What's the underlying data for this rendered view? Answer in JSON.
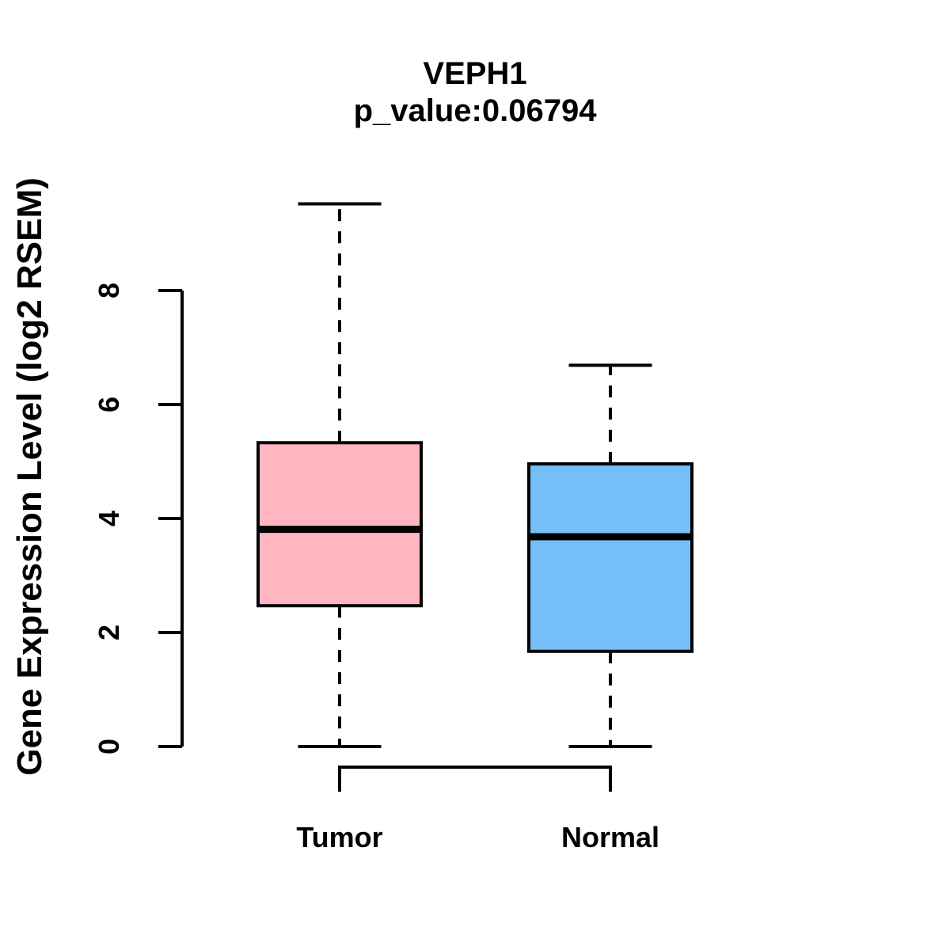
{
  "chart_data": {
    "type": "boxplot",
    "title": "VEPH1",
    "subtitle": "p_value:0.06794",
    "p_value": 0.06794,
    "ylabel": "Gene Expression Level (log2 RSEM)",
    "xlabel": "",
    "ylim": [
      0,
      9.6
    ],
    "yticks": [
      0,
      2,
      4,
      6,
      8
    ],
    "grid": false,
    "legend": "none",
    "groups": [
      {
        "label": "Tumor",
        "fill": "#FFB6C1",
        "whisker_low": 0,
        "q1": 2.47,
        "median": 3.81,
        "q3": 5.33,
        "whisker_high": 9.52
      },
      {
        "label": "Normal",
        "fill": "#74BFF7",
        "whisker_low": 0,
        "q1": 1.67,
        "median": 3.68,
        "q3": 4.96,
        "whisker_high": 6.69
      }
    ],
    "colors": {
      "stroke": "#000000",
      "text": "#000000",
      "background": "#FFFFFF",
      "tumor_fill": "#FFB6C1",
      "normal_fill": "#74BFF7"
    }
  }
}
